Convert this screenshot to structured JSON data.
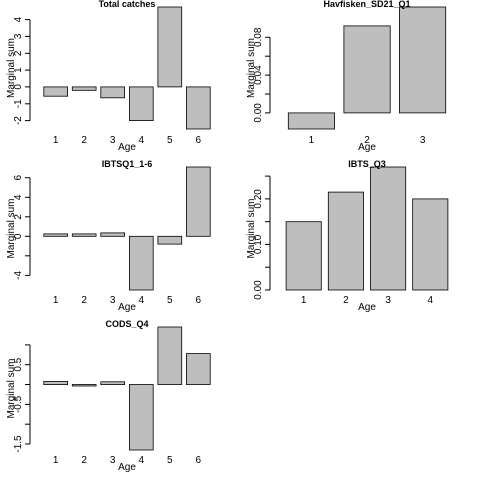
{
  "chart_data": [
    {
      "type": "bar",
      "title": "Total catches",
      "xlabel": "Age",
      "ylabel": "Marginal sum",
      "categories": [
        "1",
        "2",
        "3",
        "4",
        "5",
        "6"
      ],
      "values": [
        -0.55,
        -0.2,
        -0.65,
        -2.0,
        4.75,
        -2.5
      ],
      "ylim": [
        -2.5,
        4.75
      ],
      "yticks": [
        -2,
        -1,
        0,
        1,
        2,
        3,
        4
      ],
      "ytick_labels": [
        "-2",
        "-1",
        "0",
        "1",
        "2",
        "3",
        "4"
      ]
    },
    {
      "type": "bar",
      "title": "Havfisken_SD21_Q1",
      "xlabel": "Age",
      "ylabel": "Marginal sum",
      "categories": [
        "1",
        "2",
        "3"
      ],
      "values": [
        -0.017,
        0.092,
        0.112
      ],
      "ylim": [
        -0.017,
        0.112
      ],
      "yticks": [
        0.0,
        0.02,
        0.04,
        0.06,
        0.08
      ],
      "ytick_labels": [
        "0.00",
        "",
        "0.04",
        "",
        "0.08"
      ]
    },
    {
      "type": "bar",
      "title": "IBTSQ1_1-6",
      "xlabel": "Age",
      "ylabel": "Marginal sum",
      "categories": [
        "1",
        "2",
        "3",
        "4",
        "5",
        "6"
      ],
      "values": [
        0.25,
        0.25,
        0.35,
        -5.5,
        -0.8,
        7.1
      ],
      "ylim": [
        -5.5,
        7.1
      ],
      "yticks": [
        -4,
        -2,
        0,
        2,
        4,
        6
      ],
      "ytick_labels": [
        "-4",
        "",
        "0",
        "2",
        "4",
        "6"
      ]
    },
    {
      "type": "bar",
      "title": "IBTS_Q3",
      "xlabel": "Age",
      "ylabel": "Marginal sum",
      "categories": [
        "1",
        "2",
        "3",
        "4"
      ],
      "values": [
        0.15,
        0.215,
        0.27,
        0.2
      ],
      "ylim": [
        0.0,
        0.27
      ],
      "yticks": [
        0.0,
        0.05,
        0.1,
        0.15,
        0.2,
        0.25
      ],
      "ytick_labels": [
        "0.00",
        "",
        "0.10",
        "",
        "0.20",
        ""
      ]
    },
    {
      "type": "bar",
      "title": "CODS_Q4",
      "xlabel": "Age",
      "ylabel": "Marginal sum",
      "categories": [
        "1",
        "2",
        "3",
        "4",
        "5",
        "6"
      ],
      "values": [
        0.08,
        -0.03,
        0.07,
        -1.65,
        1.45,
        0.78
      ],
      "ylim": [
        -1.65,
        1.45
      ],
      "yticks": [
        -1.5,
        -1.0,
        -0.5,
        0.0,
        0.5,
        1.0
      ],
      "ytick_labels": [
        "-1.5",
        "",
        "-0.5",
        "",
        "0.5",
        ""
      ]
    }
  ]
}
